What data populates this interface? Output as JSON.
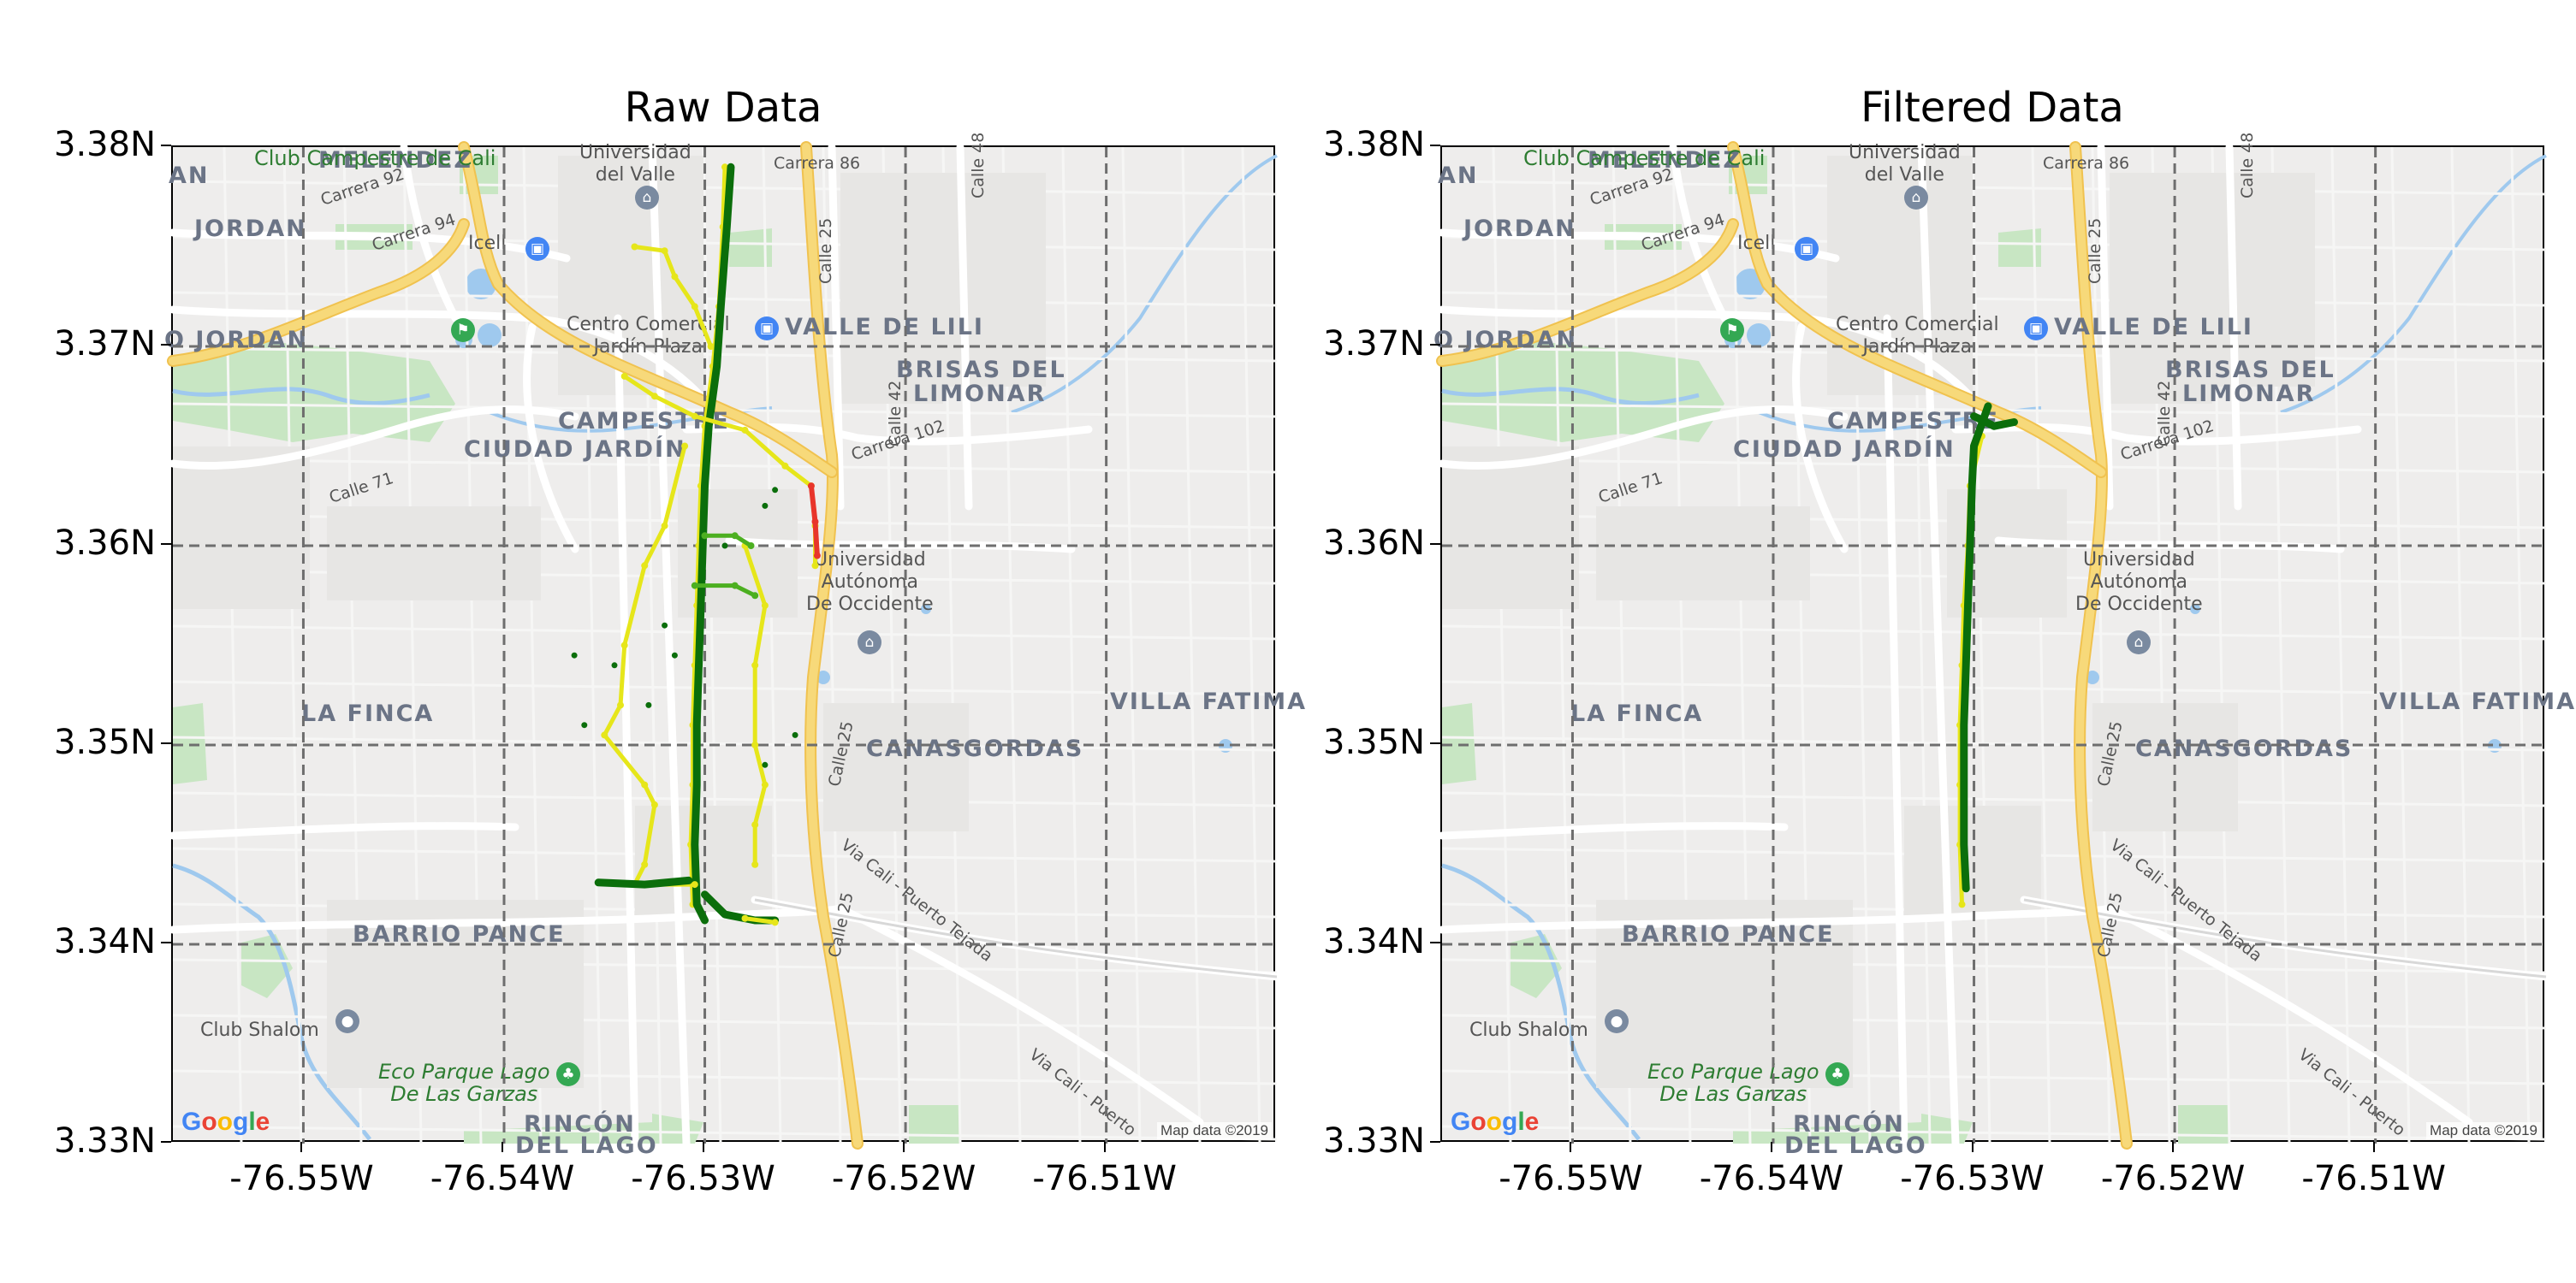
{
  "panels": [
    {
      "title": "Raw Data",
      "track_variant": "raw"
    },
    {
      "title": "Filtered Data",
      "track_variant": "filtered"
    }
  ],
  "axes": {
    "y_ticks": [
      "3.38N",
      "3.37N",
      "3.36N",
      "3.35N",
      "3.34N",
      "3.33N"
    ],
    "x_ticks": [
      "-76.55W",
      "-76.54W",
      "-76.53W",
      "-76.52W",
      "-76.51W"
    ],
    "lon_range": [
      -76.5565,
      -76.5015
    ],
    "lat_range": [
      3.33,
      3.38
    ],
    "grid": true,
    "grid_style": "dashed"
  },
  "basemap": {
    "neighborhoods": [
      "MELENDEZ",
      "JORDAN",
      "O JORDAN",
      "AN",
      "VALLE DE LILI",
      "BRISAS DEL",
      "LIMONAR",
      "CAMPESTRE",
      "CIUDAD JARDÍN",
      "LA FINCA",
      "VILLA FATIMA",
      "CANASGORDAS",
      "BARRIO PANCE",
      "RINCÓN",
      "DEL LAGO"
    ],
    "streets": [
      "Carrera 92",
      "Carrera 94",
      "Carrera 86",
      "Calle 48",
      "Calle 25",
      "Calle 42",
      "Carrera 102",
      "Calle 71",
      "Via Cali - Puerto Tejada",
      "Via Cali - Puerto"
    ],
    "places": [
      "Universidad",
      "del Valle",
      "Icell",
      "Centro Comercial",
      "Jardín Plaza",
      "Universidad",
      "Autónoma",
      "De Occidente",
      "Club Shalom"
    ],
    "parks": [
      "Club Campestre de Cali",
      "Eco Parque Lago",
      "De Las Garzas"
    ],
    "logo": "Google",
    "copyright": "Map data ©2019",
    "colors": {
      "land": "#eeedec",
      "green_area": "#c8e6c3",
      "water": "#9fc9ee",
      "road": "#ffffff",
      "highway": "#f7d97a",
      "highway_edge": "#f0c24f"
    }
  },
  "track": {
    "colors": {
      "good": "#0b6e0b",
      "medium": "#e6e61a",
      "bad": "#e8352b",
      "mid_green": "#4caf20"
    },
    "raw_segments": [
      {
        "quality": "medium",
        "points": [
          [
            -76.529,
            3.379
          ],
          [
            -76.5291,
            3.376
          ],
          [
            -76.5293,
            3.372
          ],
          [
            -76.5296,
            3.369
          ],
          [
            -76.53,
            3.366
          ],
          [
            -76.5302,
            3.363
          ],
          [
            -76.5303,
            3.36
          ],
          [
            -76.5304,
            3.357
          ],
          [
            -76.5305,
            3.354
          ],
          [
            -76.5306,
            3.351
          ],
          [
            -76.5306,
            3.348
          ],
          [
            -76.5307,
            3.345
          ],
          [
            -76.5306,
            3.342
          ]
        ]
      },
      {
        "quality": "good",
        "points": [
          [
            -76.5287,
            3.379
          ],
          [
            -76.5289,
            3.376
          ],
          [
            -76.5292,
            3.372
          ],
          [
            -76.5294,
            3.369
          ],
          [
            -76.5298,
            3.366
          ],
          [
            -76.53,
            3.363
          ],
          [
            -76.5301,
            3.36
          ],
          [
            -76.5302,
            3.357
          ],
          [
            -76.5303,
            3.354
          ],
          [
            -76.5304,
            3.351
          ],
          [
            -76.5304,
            3.348
          ],
          [
            -76.5305,
            3.345
          ],
          [
            -76.5304,
            3.342
          ],
          [
            -76.53,
            3.3412
          ]
        ]
      },
      {
        "quality": "medium",
        "points": [
          [
            -76.5335,
            3.375
          ],
          [
            -76.532,
            3.3748
          ],
          [
            -76.5315,
            3.3735
          ],
          [
            -76.5305,
            3.372
          ],
          [
            -76.5297,
            3.37
          ]
        ]
      },
      {
        "quality": "medium",
        "points": [
          [
            -76.534,
            3.3685
          ],
          [
            -76.5325,
            3.3675
          ],
          [
            -76.5305,
            3.3665
          ],
          [
            -76.528,
            3.3658
          ],
          [
            -76.526,
            3.364
          ],
          [
            -76.5247,
            3.363
          ],
          [
            -76.5245,
            3.361
          ],
          [
            -76.5245,
            3.359
          ]
        ]
      },
      {
        "quality": "bad",
        "points": [
          [
            -76.5247,
            3.363
          ],
          [
            -76.5245,
            3.3612
          ],
          [
            -76.5244,
            3.3595
          ]
        ]
      },
      {
        "quality": "medium",
        "points": [
          [
            -76.531,
            3.365
          ],
          [
            -76.532,
            3.361
          ],
          [
            -76.533,
            3.359
          ],
          [
            -76.534,
            3.355
          ],
          [
            -76.5342,
            3.352
          ],
          [
            -76.535,
            3.3505
          ],
          [
            -76.533,
            3.348
          ],
          [
            -76.5325,
            3.347
          ],
          [
            -76.533,
            3.344
          ],
          [
            -76.5335,
            3.343
          ],
          [
            -76.5305,
            3.343
          ]
        ]
      },
      {
        "quality": "good",
        "points": [
          [
            -76.5353,
            3.3431
          ],
          [
            -76.533,
            3.343
          ],
          [
            -76.5308,
            3.3432
          ]
        ]
      },
      {
        "quality": "medium",
        "points": [
          [
            -76.528,
            3.36
          ],
          [
            -76.527,
            3.357
          ],
          [
            -76.5275,
            3.354
          ],
          [
            -76.5275,
            3.35
          ],
          [
            -76.527,
            3.348
          ],
          [
            -76.5275,
            3.346
          ],
          [
            -76.5275,
            3.344
          ]
        ]
      },
      {
        "quality": "mid_green",
        "points": [
          [
            -76.5305,
            3.358
          ],
          [
            -76.5285,
            3.358
          ],
          [
            -76.5275,
            3.3575
          ]
        ]
      },
      {
        "quality": "mid_green",
        "points": [
          [
            -76.53,
            3.3605
          ],
          [
            -76.5285,
            3.3605
          ],
          [
            -76.5277,
            3.36
          ]
        ]
      },
      {
        "quality": "good",
        "points": [
          [
            -76.53,
            3.3425
          ],
          [
            -76.529,
            3.3415
          ],
          [
            -76.5275,
            3.3412
          ],
          [
            -76.5265,
            3.3412
          ]
        ]
      },
      {
        "quality": "medium",
        "points": [
          [
            -76.528,
            3.3413
          ],
          [
            -76.5265,
            3.3411
          ]
        ]
      }
    ],
    "filtered_segments": [
      {
        "quality": "medium",
        "points": [
          [
            -76.5296,
            3.3655
          ],
          [
            -76.5302,
            3.363
          ],
          [
            -76.5303,
            3.36
          ],
          [
            -76.5305,
            3.357
          ],
          [
            -76.5306,
            3.354
          ],
          [
            -76.5307,
            3.351
          ],
          [
            -76.5307,
            3.348
          ],
          [
            -76.5307,
            3.345
          ],
          [
            -76.5306,
            3.342
          ]
        ]
      },
      {
        "quality": "good",
        "points": [
          [
            -76.5293,
            3.367
          ],
          [
            -76.53,
            3.365
          ],
          [
            -76.5301,
            3.363
          ],
          [
            -76.5302,
            3.36
          ],
          [
            -76.5303,
            3.357
          ],
          [
            -76.5304,
            3.354
          ],
          [
            -76.5305,
            3.351
          ],
          [
            -76.5305,
            3.348
          ],
          [
            -76.5305,
            3.345
          ],
          [
            -76.5304,
            3.3428
          ]
        ]
      },
      {
        "quality": "good",
        "points": [
          [
            -76.53,
            3.3665
          ],
          [
            -76.529,
            3.366
          ],
          [
            -76.528,
            3.3662
          ]
        ]
      }
    ]
  }
}
